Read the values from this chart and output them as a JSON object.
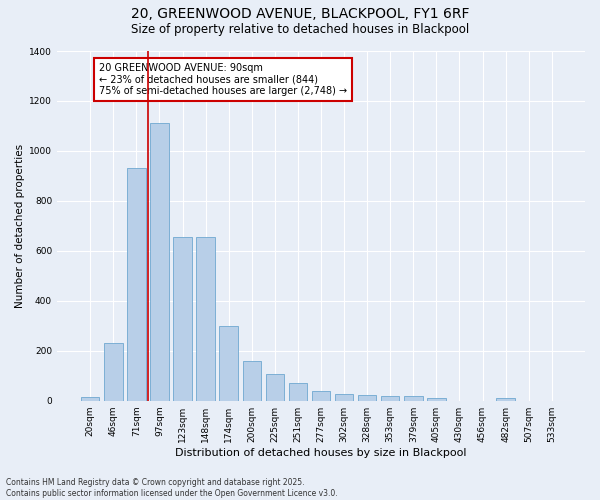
{
  "title": "20, GREENWOOD AVENUE, BLACKPOOL, FY1 6RF",
  "subtitle": "Size of property relative to detached houses in Blackpool",
  "xlabel": "Distribution of detached houses by size in Blackpool",
  "ylabel": "Number of detached properties",
  "categories": [
    "20sqm",
    "46sqm",
    "71sqm",
    "97sqm",
    "123sqm",
    "148sqm",
    "174sqm",
    "200sqm",
    "225sqm",
    "251sqm",
    "277sqm",
    "302sqm",
    "328sqm",
    "353sqm",
    "379sqm",
    "405sqm",
    "430sqm",
    "456sqm",
    "482sqm",
    "507sqm",
    "533sqm"
  ],
  "values": [
    15,
    230,
    930,
    1110,
    655,
    655,
    300,
    160,
    105,
    70,
    38,
    25,
    22,
    20,
    18,
    12,
    0,
    0,
    10,
    0,
    0
  ],
  "bar_color": "#b8cfe8",
  "bar_edge_color": "#6fa8d0",
  "bg_color": "#e8eef7",
  "grid_color": "#ffffff",
  "vline_color": "#cc0000",
  "annotation_text": "20 GREENWOOD AVENUE: 90sqm\n← 23% of detached houses are smaller (844)\n75% of semi-detached houses are larger (2,748) →",
  "annotation_box_color": "#cc0000",
  "annotation_text_color": "#000000",
  "ylim": [
    0,
    1400
  ],
  "footnote": "Contains HM Land Registry data © Crown copyright and database right 2025.\nContains public sector information licensed under the Open Government Licence v3.0.",
  "title_fontsize": 10,
  "subtitle_fontsize": 8.5,
  "xlabel_fontsize": 8,
  "ylabel_fontsize": 7.5,
  "tick_fontsize": 6.5,
  "annotation_fontsize": 7,
  "footnote_fontsize": 5.5
}
